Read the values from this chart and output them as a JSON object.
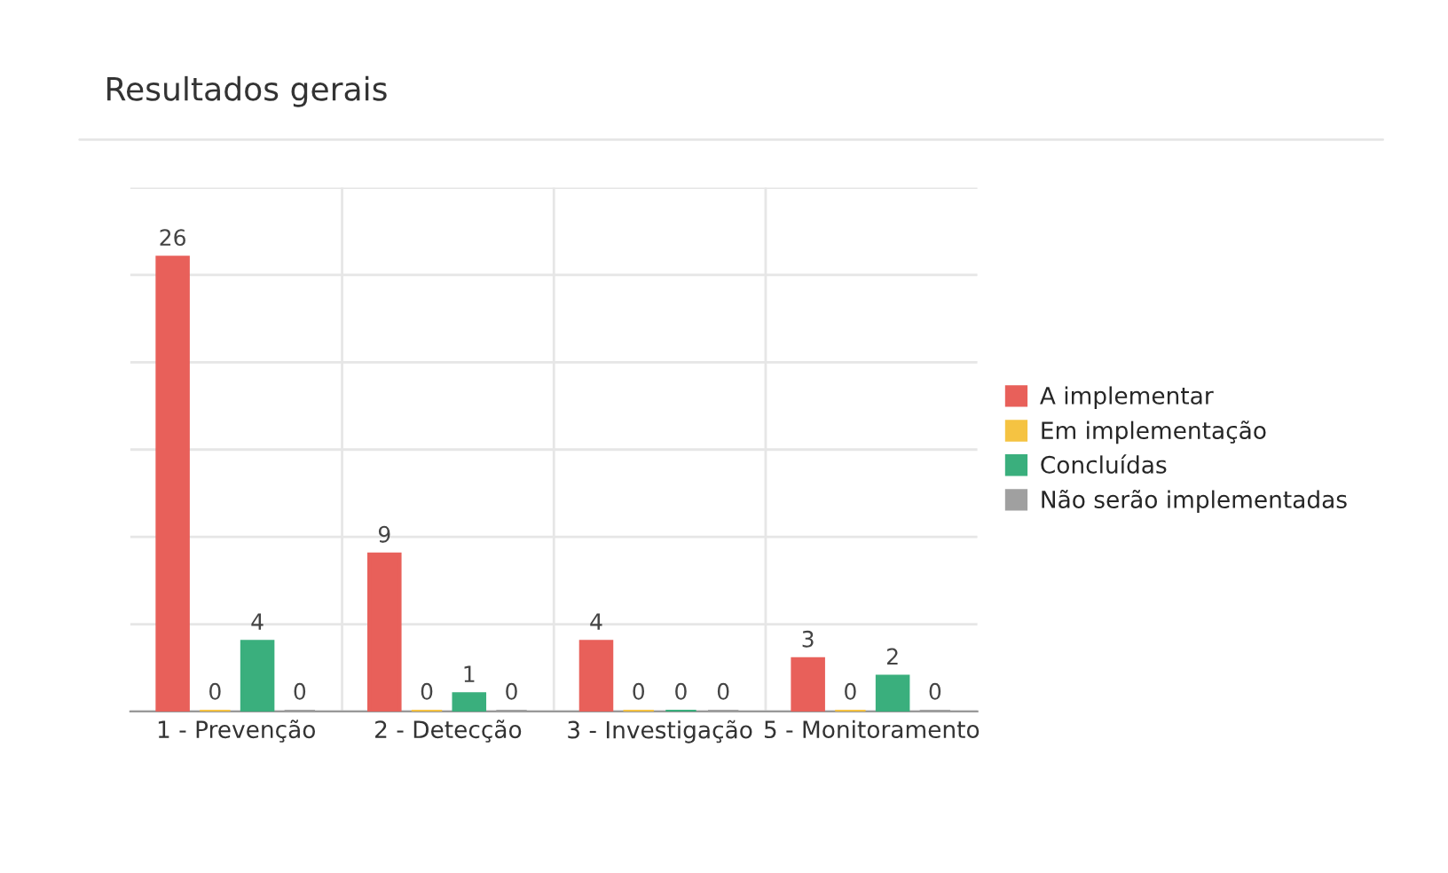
{
  "chart_data": {
    "type": "bar",
    "title": "Resultados gerais",
    "categories": [
      "1 - Prevenção",
      "2 - Detecção",
      "3 - Investigação",
      "5 - Monitoramento"
    ],
    "series": [
      {
        "name": "A implementar",
        "color": "#e8605a",
        "values": [
          26,
          9,
          4,
          3
        ]
      },
      {
        "name": "Em implementação",
        "color": "#f5c342",
        "values": [
          0,
          0,
          0,
          0
        ]
      },
      {
        "name": "Concluídas",
        "color": "#3aaf7d",
        "values": [
          4,
          1,
          0,
          2
        ]
      },
      {
        "name": "Não serão implementadas",
        "color": "#a0a0a0",
        "values": [
          0,
          0,
          0,
          0
        ]
      }
    ],
    "ylim": [
      0,
      30
    ],
    "yticks": [
      {
        "value": 0,
        "label": null
      },
      {
        "value": 5,
        "label": null
      },
      {
        "value": 10,
        "label": null
      },
      {
        "value": 15,
        "label": null
      },
      {
        "value": 20,
        "label": null
      },
      {
        "value": 25,
        "label": null
      },
      {
        "value": 30,
        "label": null
      }
    ],
    "tick_labels": "x",
    "grid": true,
    "data_labels": true,
    "legend": "right"
  }
}
